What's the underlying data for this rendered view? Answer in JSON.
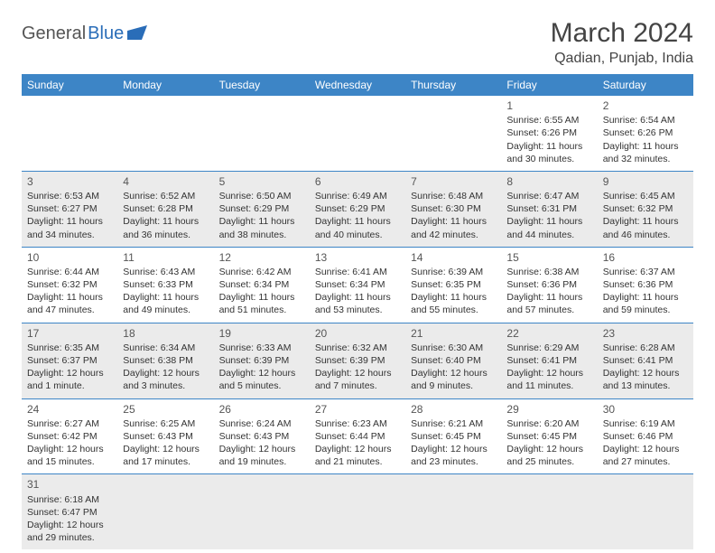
{
  "logo": {
    "text1": "General",
    "text2": "Blue"
  },
  "title": "March 2024",
  "location": "Qadian, Punjab, India",
  "colors": {
    "header_bg": "#3d85c6",
    "header_fg": "#ffffff",
    "shaded_bg": "#ebebeb",
    "border": "#3d85c6",
    "logo_accent": "#2a6db8"
  },
  "weekdays": [
    "Sunday",
    "Monday",
    "Tuesday",
    "Wednesday",
    "Thursday",
    "Friday",
    "Saturday"
  ],
  "weeks": [
    [
      null,
      null,
      null,
      null,
      null,
      {
        "n": "1",
        "sunrise": "Sunrise: 6:55 AM",
        "sunset": "Sunset: 6:26 PM",
        "daylight": "Daylight: 11 hours and 30 minutes."
      },
      {
        "n": "2",
        "sunrise": "Sunrise: 6:54 AM",
        "sunset": "Sunset: 6:26 PM",
        "daylight": "Daylight: 11 hours and 32 minutes."
      }
    ],
    [
      {
        "n": "3",
        "sunrise": "Sunrise: 6:53 AM",
        "sunset": "Sunset: 6:27 PM",
        "daylight": "Daylight: 11 hours and 34 minutes."
      },
      {
        "n": "4",
        "sunrise": "Sunrise: 6:52 AM",
        "sunset": "Sunset: 6:28 PM",
        "daylight": "Daylight: 11 hours and 36 minutes."
      },
      {
        "n": "5",
        "sunrise": "Sunrise: 6:50 AM",
        "sunset": "Sunset: 6:29 PM",
        "daylight": "Daylight: 11 hours and 38 minutes."
      },
      {
        "n": "6",
        "sunrise": "Sunrise: 6:49 AM",
        "sunset": "Sunset: 6:29 PM",
        "daylight": "Daylight: 11 hours and 40 minutes."
      },
      {
        "n": "7",
        "sunrise": "Sunrise: 6:48 AM",
        "sunset": "Sunset: 6:30 PM",
        "daylight": "Daylight: 11 hours and 42 minutes."
      },
      {
        "n": "8",
        "sunrise": "Sunrise: 6:47 AM",
        "sunset": "Sunset: 6:31 PM",
        "daylight": "Daylight: 11 hours and 44 minutes."
      },
      {
        "n": "9",
        "sunrise": "Sunrise: 6:45 AM",
        "sunset": "Sunset: 6:32 PM",
        "daylight": "Daylight: 11 hours and 46 minutes."
      }
    ],
    [
      {
        "n": "10",
        "sunrise": "Sunrise: 6:44 AM",
        "sunset": "Sunset: 6:32 PM",
        "daylight": "Daylight: 11 hours and 47 minutes."
      },
      {
        "n": "11",
        "sunrise": "Sunrise: 6:43 AM",
        "sunset": "Sunset: 6:33 PM",
        "daylight": "Daylight: 11 hours and 49 minutes."
      },
      {
        "n": "12",
        "sunrise": "Sunrise: 6:42 AM",
        "sunset": "Sunset: 6:34 PM",
        "daylight": "Daylight: 11 hours and 51 minutes."
      },
      {
        "n": "13",
        "sunrise": "Sunrise: 6:41 AM",
        "sunset": "Sunset: 6:34 PM",
        "daylight": "Daylight: 11 hours and 53 minutes."
      },
      {
        "n": "14",
        "sunrise": "Sunrise: 6:39 AM",
        "sunset": "Sunset: 6:35 PM",
        "daylight": "Daylight: 11 hours and 55 minutes."
      },
      {
        "n": "15",
        "sunrise": "Sunrise: 6:38 AM",
        "sunset": "Sunset: 6:36 PM",
        "daylight": "Daylight: 11 hours and 57 minutes."
      },
      {
        "n": "16",
        "sunrise": "Sunrise: 6:37 AM",
        "sunset": "Sunset: 6:36 PM",
        "daylight": "Daylight: 11 hours and 59 minutes."
      }
    ],
    [
      {
        "n": "17",
        "sunrise": "Sunrise: 6:35 AM",
        "sunset": "Sunset: 6:37 PM",
        "daylight": "Daylight: 12 hours and 1 minute."
      },
      {
        "n": "18",
        "sunrise": "Sunrise: 6:34 AM",
        "sunset": "Sunset: 6:38 PM",
        "daylight": "Daylight: 12 hours and 3 minutes."
      },
      {
        "n": "19",
        "sunrise": "Sunrise: 6:33 AM",
        "sunset": "Sunset: 6:39 PM",
        "daylight": "Daylight: 12 hours and 5 minutes."
      },
      {
        "n": "20",
        "sunrise": "Sunrise: 6:32 AM",
        "sunset": "Sunset: 6:39 PM",
        "daylight": "Daylight: 12 hours and 7 minutes."
      },
      {
        "n": "21",
        "sunrise": "Sunrise: 6:30 AM",
        "sunset": "Sunset: 6:40 PM",
        "daylight": "Daylight: 12 hours and 9 minutes."
      },
      {
        "n": "22",
        "sunrise": "Sunrise: 6:29 AM",
        "sunset": "Sunset: 6:41 PM",
        "daylight": "Daylight: 12 hours and 11 minutes."
      },
      {
        "n": "23",
        "sunrise": "Sunrise: 6:28 AM",
        "sunset": "Sunset: 6:41 PM",
        "daylight": "Daylight: 12 hours and 13 minutes."
      }
    ],
    [
      {
        "n": "24",
        "sunrise": "Sunrise: 6:27 AM",
        "sunset": "Sunset: 6:42 PM",
        "daylight": "Daylight: 12 hours and 15 minutes."
      },
      {
        "n": "25",
        "sunrise": "Sunrise: 6:25 AM",
        "sunset": "Sunset: 6:43 PM",
        "daylight": "Daylight: 12 hours and 17 minutes."
      },
      {
        "n": "26",
        "sunrise": "Sunrise: 6:24 AM",
        "sunset": "Sunset: 6:43 PM",
        "daylight": "Daylight: 12 hours and 19 minutes."
      },
      {
        "n": "27",
        "sunrise": "Sunrise: 6:23 AM",
        "sunset": "Sunset: 6:44 PM",
        "daylight": "Daylight: 12 hours and 21 minutes."
      },
      {
        "n": "28",
        "sunrise": "Sunrise: 6:21 AM",
        "sunset": "Sunset: 6:45 PM",
        "daylight": "Daylight: 12 hours and 23 minutes."
      },
      {
        "n": "29",
        "sunrise": "Sunrise: 6:20 AM",
        "sunset": "Sunset: 6:45 PM",
        "daylight": "Daylight: 12 hours and 25 minutes."
      },
      {
        "n": "30",
        "sunrise": "Sunrise: 6:19 AM",
        "sunset": "Sunset: 6:46 PM",
        "daylight": "Daylight: 12 hours and 27 minutes."
      }
    ],
    [
      {
        "n": "31",
        "sunrise": "Sunrise: 6:18 AM",
        "sunset": "Sunset: 6:47 PM",
        "daylight": "Daylight: 12 hours and 29 minutes."
      },
      null,
      null,
      null,
      null,
      null,
      null
    ]
  ]
}
